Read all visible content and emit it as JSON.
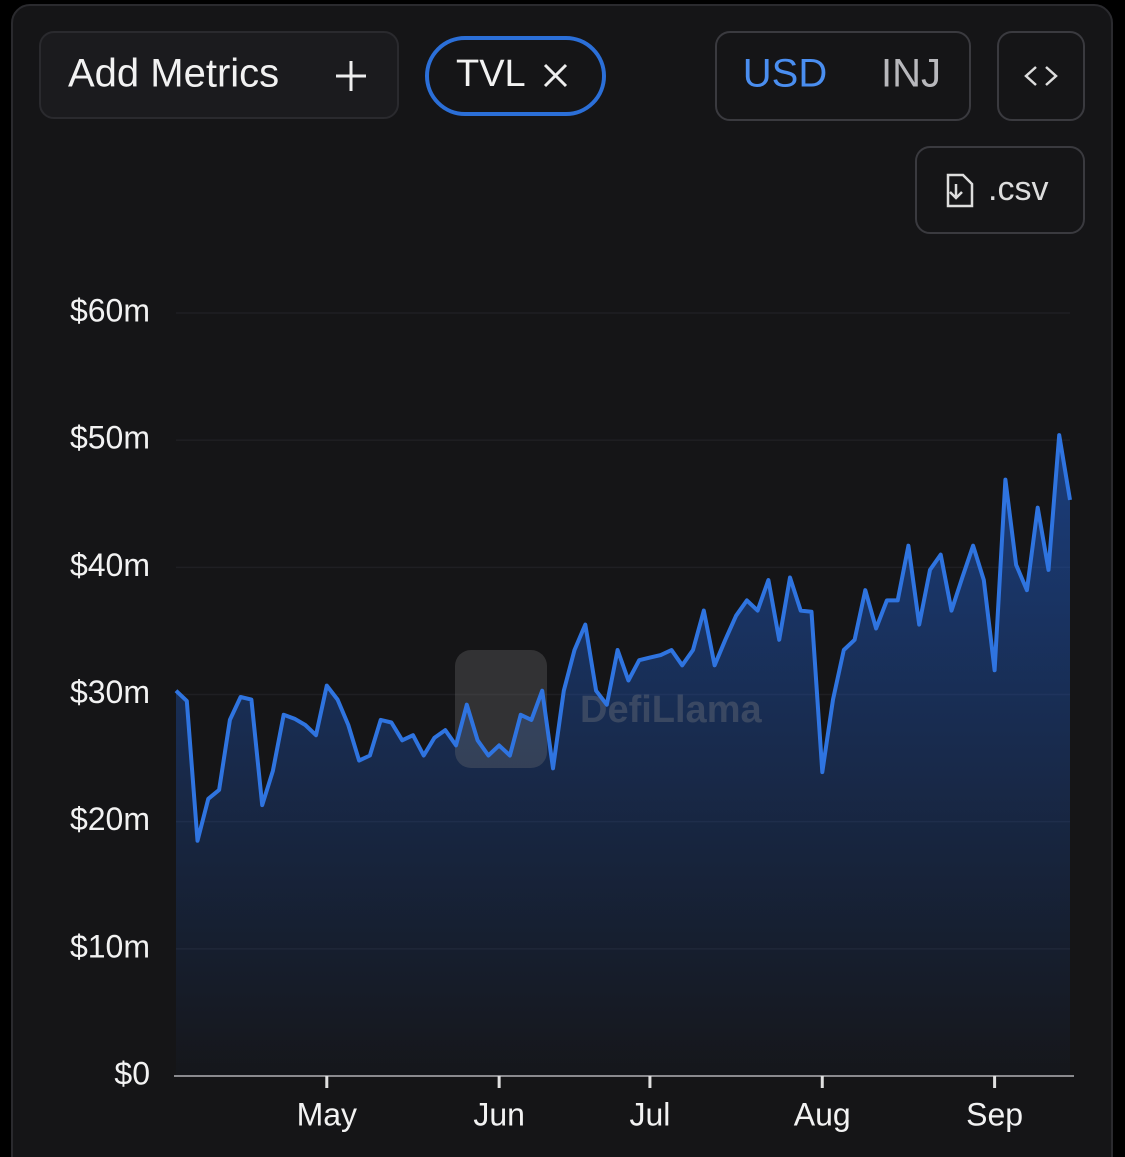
{
  "ui": {
    "add_metrics": "Add Metrics",
    "metric": "TVL",
    "currency_primary": "USD",
    "currency_secondary": "INJ",
    "csv": ".csv",
    "watermark": "DefiLlama"
  },
  "chart_data": {
    "type": "area",
    "categories": [
      null,
      null,
      null,
      null,
      null,
      null,
      null,
      null,
      null,
      null,
      null,
      null,
      null,
      null,
      "May",
      null,
      null,
      null,
      null,
      null,
      null,
      null,
      null,
      null,
      null,
      null,
      null,
      null,
      null,
      null,
      "Jun",
      null,
      null,
      null,
      null,
      null,
      null,
      null,
      null,
      null,
      null,
      null,
      null,
      null,
      "Jul",
      null,
      null,
      null,
      null,
      null,
      null,
      null,
      null,
      null,
      null,
      null,
      null,
      null,
      null,
      null,
      "Aug",
      null,
      null,
      null,
      null,
      null,
      null,
      null,
      null,
      null,
      null,
      null,
      null,
      null,
      null,
      null,
      "Sep",
      null,
      null,
      null,
      null,
      null,
      null,
      null
    ],
    "series": [
      {
        "name": "TVL",
        "color": "#2f74e0",
        "values": [
          30.3,
          29.5,
          18.5,
          21.8,
          22.5,
          28,
          29.8,
          29.6,
          21.3,
          24,
          28.4,
          28.1,
          27.6,
          26.8,
          30.7,
          29.6,
          27.6,
          24.8,
          25.2,
          28,
          27.8,
          26.4,
          26.8,
          25.2,
          26.6,
          27.2,
          26,
          29.2,
          26.4,
          25.2,
          26,
          25.2,
          28.4,
          28,
          30.3,
          24.2,
          30.3,
          33.5,
          35.5,
          30.3,
          29.2,
          33.5,
          31.1,
          32.7,
          32.9,
          33.1,
          33.5,
          32.3,
          33.5,
          36.6,
          32.3,
          34.3,
          36.2,
          37.4,
          36.6,
          39,
          34.3,
          39.2,
          36.6,
          36.5,
          23.9,
          29.6,
          33.5,
          34.3,
          38.2,
          35.2,
          37.4,
          37.4,
          41.7,
          35.5,
          39.8,
          41,
          36.6,
          39.2,
          41.7,
          39,
          31.9,
          46.9,
          40.2,
          38.2,
          44.7,
          39.8,
          50.4,
          45.3
        ]
      }
    ],
    "ylim": [
      0,
      60
    ],
    "yticks": [
      {
        "value": 0,
        "label": "$0"
      },
      {
        "value": 10,
        "label": "$10m"
      },
      {
        "value": 20,
        "label": "$20m"
      },
      {
        "value": 30,
        "label": "$30m"
      },
      {
        "value": 40,
        "label": "$40m"
      },
      {
        "value": 50,
        "label": "$50m"
      },
      {
        "value": 60,
        "label": "$60m"
      }
    ],
    "grid": true
  }
}
